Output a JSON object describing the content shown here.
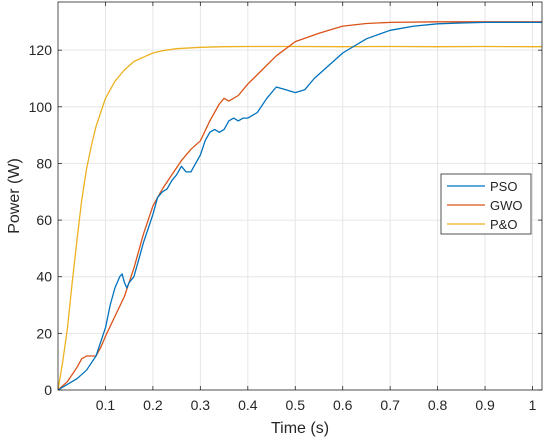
{
  "chart_data": {
    "type": "line",
    "title": "",
    "xlabel": "Time (s)",
    "ylabel": "Power (W)",
    "xlim": [
      0,
      1.02
    ],
    "ylim": [
      0,
      137
    ],
    "x_ticks": [
      0.1,
      0.2,
      0.3,
      0.4,
      0.5,
      0.6,
      0.7,
      0.8,
      0.9,
      1
    ],
    "x_tick_labels": [
      "0.1",
      "0.2",
      "0.3",
      "0.4",
      "0.5",
      "0.6",
      "0.7",
      "0.8",
      "0.9",
      "1"
    ],
    "y_ticks": [
      0,
      20,
      40,
      60,
      80,
      100,
      120
    ],
    "y_tick_labels": [
      "0",
      "20",
      "40",
      "60",
      "80",
      "100",
      "120"
    ],
    "grid": true,
    "legend_position": "right",
    "series": [
      {
        "name": "PSO",
        "color": "#0072BD",
        "points": [
          [
            0.0,
            0
          ],
          [
            0.02,
            2
          ],
          [
            0.04,
            4
          ],
          [
            0.06,
            7
          ],
          [
            0.08,
            12
          ],
          [
            0.1,
            22
          ],
          [
            0.11,
            30
          ],
          [
            0.12,
            36
          ],
          [
            0.13,
            40
          ],
          [
            0.135,
            41
          ],
          [
            0.14,
            38
          ],
          [
            0.145,
            36
          ],
          [
            0.15,
            38
          ],
          [
            0.16,
            40
          ],
          [
            0.17,
            46
          ],
          [
            0.18,
            52
          ],
          [
            0.19,
            57
          ],
          [
            0.2,
            62
          ],
          [
            0.21,
            68
          ],
          [
            0.22,
            70
          ],
          [
            0.23,
            71
          ],
          [
            0.24,
            74
          ],
          [
            0.25,
            76
          ],
          [
            0.26,
            79
          ],
          [
            0.27,
            77
          ],
          [
            0.28,
            77
          ],
          [
            0.29,
            80
          ],
          [
            0.3,
            83
          ],
          [
            0.31,
            88
          ],
          [
            0.32,
            91
          ],
          [
            0.33,
            92
          ],
          [
            0.34,
            91
          ],
          [
            0.35,
            92
          ],
          [
            0.36,
            95
          ],
          [
            0.37,
            96
          ],
          [
            0.38,
            95
          ],
          [
            0.39,
            96
          ],
          [
            0.4,
            96
          ],
          [
            0.42,
            98
          ],
          [
            0.44,
            103
          ],
          [
            0.46,
            107
          ],
          [
            0.48,
            106
          ],
          [
            0.5,
            105
          ],
          [
            0.52,
            106
          ],
          [
            0.54,
            110
          ],
          [
            0.56,
            113
          ],
          [
            0.6,
            119
          ],
          [
            0.65,
            124
          ],
          [
            0.7,
            127
          ],
          [
            0.75,
            128.5
          ],
          [
            0.8,
            129.3
          ],
          [
            0.85,
            129.6
          ],
          [
            0.9,
            129.8
          ],
          [
            0.95,
            129.8
          ],
          [
            1.0,
            129.8
          ],
          [
            1.02,
            129.8
          ]
        ]
      },
      {
        "name": "GWO",
        "color": "#D95319",
        "points": [
          [
            0.0,
            0
          ],
          [
            0.02,
            3
          ],
          [
            0.04,
            8
          ],
          [
            0.05,
            11
          ],
          [
            0.06,
            12
          ],
          [
            0.07,
            12
          ],
          [
            0.08,
            12
          ],
          [
            0.09,
            15
          ],
          [
            0.1,
            19
          ],
          [
            0.12,
            26
          ],
          [
            0.14,
            33
          ],
          [
            0.16,
            43
          ],
          [
            0.18,
            55
          ],
          [
            0.2,
            65
          ],
          [
            0.22,
            71
          ],
          [
            0.24,
            76
          ],
          [
            0.26,
            81
          ],
          [
            0.28,
            85
          ],
          [
            0.3,
            88
          ],
          [
            0.32,
            95
          ],
          [
            0.34,
            101
          ],
          [
            0.35,
            103
          ],
          [
            0.36,
            102
          ],
          [
            0.37,
            103
          ],
          [
            0.38,
            104
          ],
          [
            0.4,
            108
          ],
          [
            0.43,
            113
          ],
          [
            0.46,
            118
          ],
          [
            0.5,
            123
          ],
          [
            0.55,
            126
          ],
          [
            0.6,
            128.5
          ],
          [
            0.65,
            129.4
          ],
          [
            0.7,
            129.8
          ],
          [
            0.8,
            130
          ],
          [
            0.9,
            130
          ],
          [
            1.0,
            130
          ],
          [
            1.02,
            130
          ]
        ]
      },
      {
        "name": "P&O",
        "color": "#EDB120",
        "points": [
          [
            0.0,
            0
          ],
          [
            0.01,
            10
          ],
          [
            0.02,
            22
          ],
          [
            0.03,
            38
          ],
          [
            0.04,
            53
          ],
          [
            0.05,
            67
          ],
          [
            0.06,
            78
          ],
          [
            0.07,
            86
          ],
          [
            0.08,
            93
          ],
          [
            0.09,
            98
          ],
          [
            0.1,
            103
          ],
          [
            0.12,
            109
          ],
          [
            0.14,
            113
          ],
          [
            0.16,
            116
          ],
          [
            0.18,
            117.5
          ],
          [
            0.2,
            119
          ],
          [
            0.22,
            119.8
          ],
          [
            0.25,
            120.5
          ],
          [
            0.3,
            121
          ],
          [
            0.35,
            121.2
          ],
          [
            0.4,
            121.3
          ],
          [
            0.5,
            121.3
          ],
          [
            0.6,
            121.2
          ],
          [
            0.7,
            121.3
          ],
          [
            0.8,
            121.2
          ],
          [
            0.9,
            121.3
          ],
          [
            1.0,
            121.2
          ],
          [
            1.02,
            121.2
          ]
        ]
      }
    ]
  }
}
